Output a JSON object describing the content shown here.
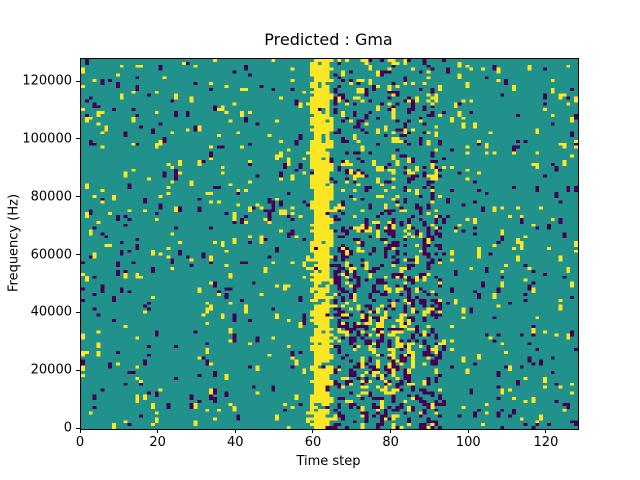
{
  "chart_data": {
    "type": "heatmap",
    "title": "Predicted : Gma",
    "xlabel": "Time step",
    "ylabel": "Frequency (Hz)",
    "xlim": [
      0,
      128
    ],
    "ylim": [
      0,
      128000
    ],
    "x_ticks": [
      0,
      20,
      40,
      60,
      80,
      100,
      120
    ],
    "y_ticks": [
      0,
      20000,
      40000,
      60000,
      80000,
      100000,
      120000
    ],
    "grid": false,
    "legend": "none",
    "colormap": "viridis",
    "colors": {
      "background_mid": "#21918c",
      "high_yellow": "#fde725",
      "low_purple": "#440154",
      "figure_background": "#ffffff",
      "axis": "#000000"
    },
    "grid_size": {
      "cols": 128,
      "rows": 128
    },
    "pattern": {
      "seed": 42,
      "base_yellow_density": 0.03,
      "base_purple_density": 0.026,
      "edge_boost": 1.8,
      "vertical_run_probability": 0.35,
      "yellow_band": {
        "col_start": 59,
        "col_end": 64,
        "core_density": 0.85,
        "edge_density": 0.4
      },
      "purple_cluster": {
        "col_start": 65,
        "col_end": 92,
        "density": 0.16,
        "low_freq_boost": 1.3,
        "yellow_density": 0.09
      },
      "yellow_patch": {
        "col_start": 72,
        "col_end": 85,
        "row_start": 12,
        "row_end": 38,
        "density": 0.22
      }
    }
  }
}
